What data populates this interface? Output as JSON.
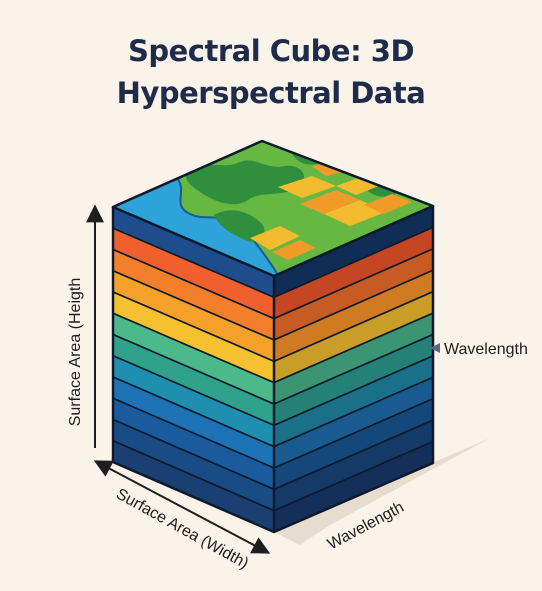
{
  "title": {
    "line1": "Spectral Cube: 3D",
    "line2": "Hyperspectral Data"
  },
  "labels": {
    "height_axis": "Surface Area (Heigth",
    "width_axis": "Surface Area (Width)",
    "depth_axis": "Wavelength",
    "band_marker": "Wavelength"
  },
  "cube": {
    "band_colors_front": [
      "#1e4d8c",
      "#f0602c",
      "#f37f2b",
      "#f6a12a",
      "#f6c130",
      "#4cb98b",
      "#2fa28c",
      "#1f8fb0",
      "#1d73b6",
      "#1a5b9d",
      "#194b84",
      "#1a3f73"
    ],
    "band_colors_side": [
      "#0f2d55",
      "#c54622",
      "#c85a24",
      "#d07b22",
      "#c89d28",
      "#3b9472",
      "#258175",
      "#1a6f89",
      "#195a8f",
      "#15487a",
      "#143b68",
      "#142f5a"
    ],
    "top_surface_colors": {
      "water": "#2ea3d9",
      "forest": "#2f8f3c",
      "grass": "#66b843",
      "field_yellow": "#f3bb2e",
      "field_orange": "#f09a28",
      "shoreline": "#1e5a8f"
    },
    "outline_color": "#0e1a2b"
  }
}
